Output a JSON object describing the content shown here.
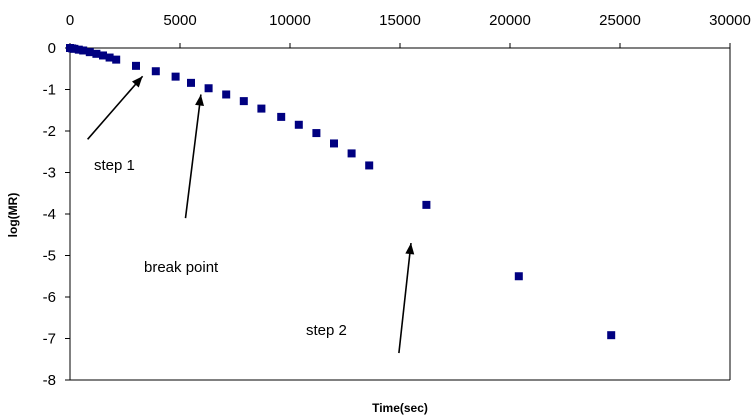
{
  "chart_data": {
    "type": "scatter",
    "title": "",
    "xlabel": "Time(sec)",
    "ylabel": "log(MR)",
    "xlim": [
      0,
      30000
    ],
    "ylim": [
      -8,
      0
    ],
    "x_ticks": [
      0,
      5000,
      10000,
      15000,
      20000,
      25000,
      30000
    ],
    "y_ticks": [
      0,
      -1,
      -2,
      -3,
      -4,
      -5,
      -6,
      -7,
      -8
    ],
    "x_tick_labels": [
      "0",
      "5000",
      "10000",
      "15000",
      "20000",
      "25000",
      "30000"
    ],
    "y_tick_labels": [
      "0",
      "-1",
      "-2",
      "-3",
      "-4",
      "-5",
      "-6",
      "-7",
      "-8"
    ],
    "x_axis_position": "top",
    "grid": false,
    "legend": "none",
    "marker_color": "#000080",
    "series": [
      {
        "x": [
          0,
          100,
          200,
          400,
          600,
          900,
          1200,
          1500,
          1800,
          2100,
          3000,
          3900,
          4800,
          5500,
          6300,
          7100,
          7900,
          8700,
          9600,
          10400,
          11200,
          12000,
          12800,
          13600,
          16200,
          20400,
          24600
        ],
        "y": [
          0,
          -0.01,
          -0.02,
          -0.04,
          -0.06,
          -0.1,
          -0.14,
          -0.18,
          -0.23,
          -0.28,
          -0.43,
          -0.56,
          -0.69,
          -0.84,
          -0.97,
          -1.12,
          -1.28,
          -1.46,
          -1.66,
          -1.85,
          -2.05,
          -2.3,
          -2.54,
          -2.83,
          -3.78,
          -5.5,
          -6.92
        ]
      }
    ],
    "annotations": [
      {
        "text": "step 1",
        "arrow_from": [
          800,
          -2.2
        ],
        "arrow_to": [
          3300,
          -0.68
        ]
      },
      {
        "text": "break point",
        "arrow_from": [
          5250,
          -4.1
        ],
        "arrow_to": [
          5950,
          -1.12
        ]
      },
      {
        "text": "step 2",
        "arrow_from": [
          14950,
          -7.35
        ],
        "arrow_to": [
          15500,
          -4.7
        ]
      }
    ]
  }
}
